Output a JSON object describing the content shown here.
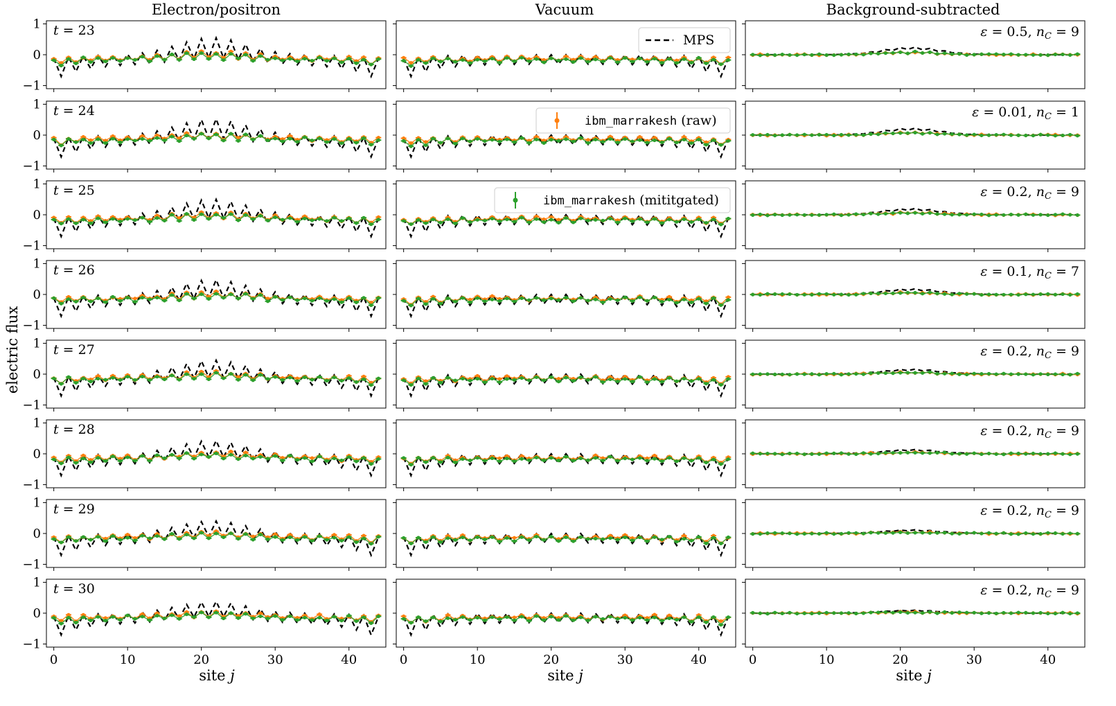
{
  "figure": {
    "column_titles": [
      "Electron/positron",
      "Vacuum",
      "Background-subtracted"
    ],
    "ylabel": "electric flux",
    "xlabel": "site j"
  },
  "chart_data": {
    "type": "line",
    "layout": "8 rows x 3 columns of small-multiple panels",
    "x_axis": {
      "label": "site j",
      "range": [
        -1,
        45
      ],
      "ticks": [
        0,
        10,
        20,
        30,
        40
      ]
    },
    "y_axis": {
      "label": "electric flux",
      "range": [
        -1.1,
        1.1
      ],
      "ticks": [
        1,
        0,
        -1
      ]
    },
    "legend": [
      {
        "label": "MPS",
        "style": "dashed-line",
        "color": "#000000",
        "panel": "Vacuum t=23"
      },
      {
        "label_code": "ibm_marrakesh",
        "label_suffix": "(raw)",
        "style": "errorbar",
        "color": "#ff7f0e",
        "panel": "Vacuum t=24"
      },
      {
        "label_code": "ibm_marrakesh",
        "label_suffix": "(mititgated)",
        "style": "errorbar",
        "color": "#2ca02c",
        "panel": "Vacuum t=25"
      }
    ],
    "series_colors": {
      "mps": "#000000",
      "raw": "#ff7f0e",
      "mitigated": "#2ca02c"
    },
    "rows": [
      {
        "t": 23,
        "time_label": "t = 23",
        "annotation": "ε = 0.5, n_C = 9",
        "eps": "0.5",
        "nC": "9"
      },
      {
        "t": 24,
        "time_label": "t = 24",
        "annotation": "ε = 0.01, n_C = 1",
        "eps": "0.01",
        "nC": "1"
      },
      {
        "t": 25,
        "time_label": "t = 25",
        "annotation": "ε = 0.2, n_C = 9",
        "eps": "0.2",
        "nC": "9"
      },
      {
        "t": 26,
        "time_label": "t = 26",
        "annotation": "ε = 0.1, n_C = 7",
        "eps": "0.1",
        "nC": "7"
      },
      {
        "t": 27,
        "time_label": "t = 27",
        "annotation": "ε = 0.2, n_C = 9",
        "eps": "0.2",
        "nC": "9"
      },
      {
        "t": 28,
        "time_label": "t = 28",
        "annotation": "ε = 0.2, n_C = 9",
        "eps": "0.2",
        "nC": "9"
      },
      {
        "t": 29,
        "time_label": "t = 29",
        "annotation": "ε = 0.2, n_C = 9",
        "eps": "0.2",
        "nC": "9"
      },
      {
        "t": 30,
        "time_label": "t = 30",
        "annotation": "ε = 0.2, n_C = 9",
        "eps": "0.2",
        "nC": "9"
      }
    ],
    "series_model": {
      "sites": 45,
      "electron_positron": {
        "mps_edge_amplitude": [
          -0.6,
          0.0
        ],
        "mps_center_peak": [
          0.45,
          0.28
        ],
        "raw_level": -0.1,
        "mitigated_level": -0.15
      },
      "vacuum": {
        "mps_edge_amplitude": [
          -0.6,
          0.0
        ],
        "mps_center_peak": 0.0,
        "raw_level": -0.12,
        "mitigated_level": -0.18
      },
      "background_subtracted": {
        "mps_center_bump": [
          0.25,
          0.1
        ],
        "raw_level": 0.0,
        "mitigated_level": 0.0
      }
    }
  }
}
